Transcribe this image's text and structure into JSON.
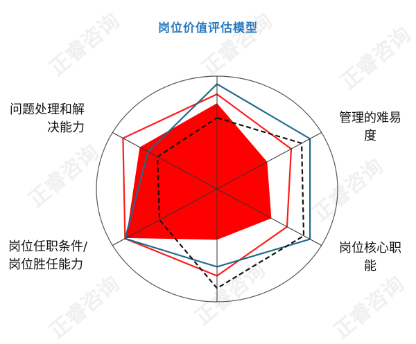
{
  "chart_data": {
    "type": "radar",
    "title": "岗位价值评估模型",
    "axes": [
      "",
      "管理的难易度",
      "岗位核心职能",
      "",
      "岗位任职条件/岗位胜任能力",
      "问题处理和解决能力"
    ],
    "axis_labels": {
      "a1": [
        "管理的难易",
        "度"
      ],
      "a2": [
        "岗位核心职",
        "能"
      ],
      "a4": [
        "岗位任职条件/",
        "岗位胜任能力"
      ],
      "a5": [
        "问题处理和解",
        "决能力"
      ]
    },
    "range": [
      0,
      100
    ],
    "series": [
      {
        "style": "filled",
        "color": "#ff0000",
        "values": [
          76,
          48,
          52,
          45,
          87,
          74
        ]
      },
      {
        "style": "line",
        "color": "#ff1a1a",
        "values": [
          84,
          71,
          67,
          77,
          88,
          90
        ]
      },
      {
        "style": "line",
        "color": "#1f6b8a",
        "values": [
          93,
          89,
          89,
          69,
          88,
          66
        ]
      },
      {
        "style": "dashed",
        "color": "#111111",
        "values": [
          63,
          81,
          83,
          88,
          55,
          57
        ]
      }
    ],
    "watermark": "正睿咨询"
  }
}
